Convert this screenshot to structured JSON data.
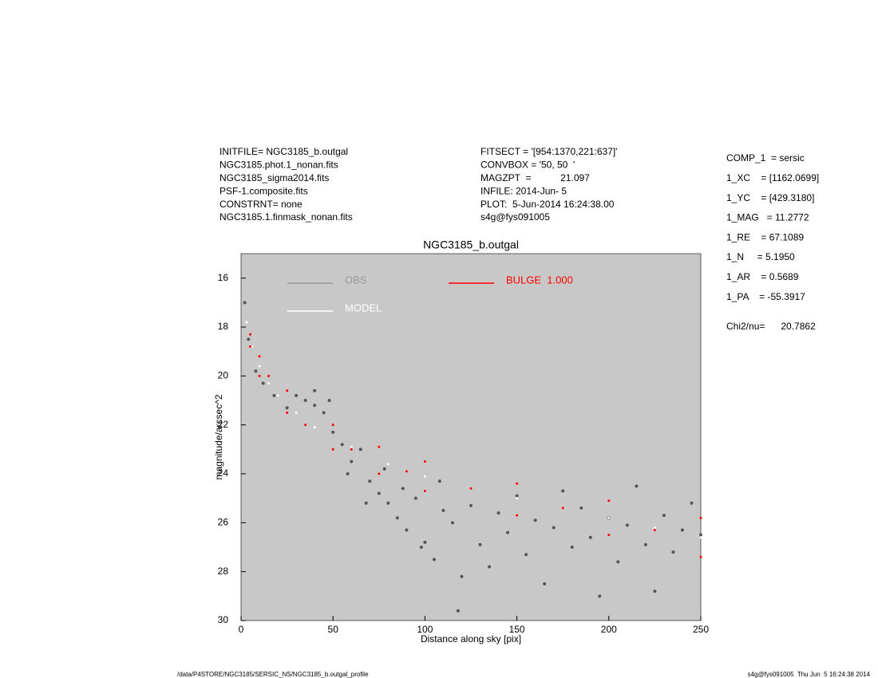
{
  "chart_data": {
    "type": "scatter",
    "title": "NGC3185_b.outgal",
    "xlabel": "Distance along sky [pix]",
    "ylabel": "magnitude/arcsec^2",
    "xlim": [
      0,
      250
    ],
    "ylim": [
      30,
      15
    ],
    "xticks": [
      0,
      50,
      100,
      150,
      200,
      250
    ],
    "yticks": [
      16,
      18,
      20,
      22,
      24,
      26,
      28,
      30
    ],
    "background": "#c8c8c8",
    "series": [
      {
        "name": "OBS",
        "color": "#555555",
        "legend_color": "#999999",
        "x": [
          2,
          4,
          8,
          12,
          18,
          25,
          30,
          35,
          40,
          45,
          50,
          55,
          60,
          65,
          70,
          75,
          80,
          85,
          90,
          95,
          100,
          105,
          110,
          115,
          120,
          125,
          130,
          135,
          140,
          145,
          150,
          155,
          160,
          165,
          170,
          175,
          180,
          185,
          190,
          195,
          200,
          205,
          210,
          215,
          220,
          225,
          230,
          235,
          240,
          245,
          250,
          40,
          48,
          58,
          68,
          78,
          88,
          98,
          108,
          118
        ],
        "y": [
          17.0,
          18.5,
          19.8,
          20.3,
          20.8,
          21.3,
          20.8,
          21.0,
          21.2,
          21.5,
          22.3,
          22.8,
          23.5,
          23.0,
          24.3,
          24.8,
          25.2,
          25.8,
          26.3,
          25.0,
          26.8,
          27.5,
          25.5,
          26.0,
          28.2,
          25.3,
          26.9,
          27.8,
          25.6,
          26.4,
          24.9,
          27.3,
          25.9,
          28.5,
          26.2,
          24.7,
          27.0,
          25.4,
          26.6,
          29.0,
          25.8,
          27.6,
          26.1,
          24.5,
          26.9,
          28.8,
          25.7,
          27.2,
          26.3,
          25.2,
          26.5,
          20.6,
          21.0,
          24.0,
          25.2,
          23.8,
          24.6,
          27.0,
          24.3,
          29.6
        ]
      },
      {
        "name": "MODEL",
        "color": "#ffffff",
        "legend_color": "#ffffff",
        "x": [
          3,
          6,
          10,
          15,
          20,
          30,
          40,
          60,
          80,
          100,
          125,
          150,
          175,
          200,
          225,
          250
        ],
        "y": [
          17.8,
          18.8,
          19.6,
          20.3,
          20.8,
          21.5,
          22.1,
          22.9,
          23.6,
          24.1,
          24.6,
          25.0,
          25.4,
          25.8,
          26.2,
          26.6
        ]
      },
      {
        "name": "BULGE  1.000",
        "color": "#ff0000",
        "legend_color": "#ff0000",
        "x": [
          5,
          10,
          25,
          50,
          75,
          100,
          150,
          200,
          250,
          5,
          10,
          25,
          50,
          75,
          100,
          150,
          200,
          250,
          15,
          35,
          60,
          90,
          125,
          175,
          225
        ],
        "y": [
          18.3,
          19.2,
          20.6,
          22.0,
          22.9,
          23.5,
          24.4,
          25.1,
          25.8,
          18.8,
          20.0,
          21.5,
          23.0,
          24.0,
          24.7,
          25.7,
          26.5,
          27.4,
          20.0,
          22.0,
          23.0,
          23.9,
          24.6,
          25.4,
          26.3
        ]
      }
    ]
  },
  "header": {
    "left": [
      "INITFILE= NGC3185_b.outgal",
      "NGC3185.phot.1_nonan.fits",
      "NGC3185_sigma2014.fits",
      "PSF-1.composite.fits",
      "CONSTRNT= none",
      "NGC3185.1.finmask_nonan.fits"
    ],
    "middle": [
      "FITSECT = '[954:1370,221:637]'",
      "CONVBOX = '50, 50  '",
      "MAGZPT  =           21.097",
      "INFILE: 2014-Jun- 5",
      "PLOT:  5-Jun-2014 16:24:38.00",
      "s4g@fys091005"
    ],
    "right": [
      "COMP_1  = sersic",
      "1_XC    = [1162.0699]",
      "1_YC    = [429.3180]",
      "1_MAG   = 11.2772",
      "1_RE    = 67.1089",
      "1_N     = 5.1950",
      "1_AR    = 0.5689",
      "1_PA    = -55.3917"
    ],
    "chi": "Chi2/nu=      20.7862"
  },
  "footer": {
    "left": "/data/P4STORE/NGC3185/SERSIC_NS/NGC3185_b.outgal_profile",
    "right": "s4g@fys091005  Thu Jun  5 16:24:38 2014"
  }
}
